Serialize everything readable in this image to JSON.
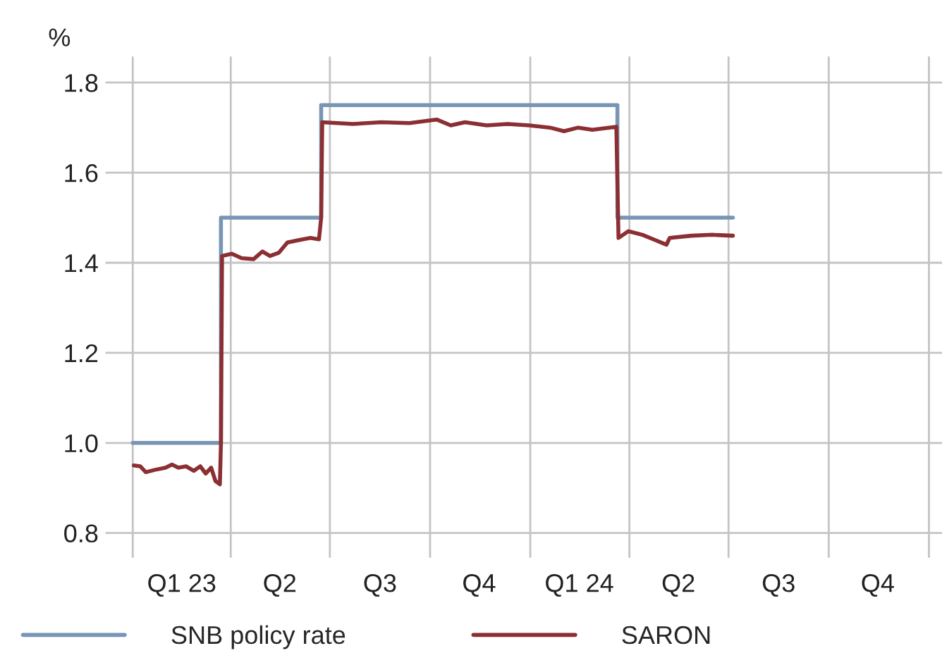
{
  "chart_data": {
    "type": "line",
    "ylabel": "%",
    "xlim": [
      "2022-12-07",
      "2025-01-13"
    ],
    "ylim": [
      0.745,
      1.858
    ],
    "yticks": [
      {
        "value": 0.8,
        "label": "0.8"
      },
      {
        "value": 1.0,
        "label": "1.0"
      },
      {
        "value": 1.2,
        "label": "1.2"
      },
      {
        "value": 1.4,
        "label": "1.4"
      },
      {
        "value": 1.6,
        "label": "1.6"
      },
      {
        "value": 1.8,
        "label": "1.8"
      }
    ],
    "xticks": [
      {
        "value": "2023-01-01",
        "label": null
      },
      {
        "value": "2023-02-15",
        "label": "Q1 23"
      },
      {
        "value": "2023-04-01",
        "label": null
      },
      {
        "value": "2023-05-16",
        "label": "Q2"
      },
      {
        "value": "2023-07-01",
        "label": null
      },
      {
        "value": "2023-08-16",
        "label": "Q3"
      },
      {
        "value": "2023-10-01",
        "label": null
      },
      {
        "value": "2023-11-15",
        "label": "Q4"
      },
      {
        "value": "2024-01-01",
        "label": null
      },
      {
        "value": "2024-02-15",
        "label": "Q1 24"
      },
      {
        "value": "2024-04-01",
        "label": null
      },
      {
        "value": "2024-05-16",
        "label": "Q2"
      },
      {
        "value": "2024-07-01",
        "label": null
      },
      {
        "value": "2024-08-16",
        "label": "Q3"
      },
      {
        "value": "2024-10-01",
        "label": null
      },
      {
        "value": "2024-11-15",
        "label": "Q4"
      },
      {
        "value": "2025-01-01",
        "label": null
      }
    ],
    "grid": true,
    "legend": "bottom",
    "line_style": "solid",
    "marker": "none",
    "series": [
      {
        "name": "SNB policy rate",
        "type": "step",
        "color": "#7795b4",
        "x": [
          "2023-01-01",
          "2023-03-23",
          "2023-06-23",
          "2024-03-21",
          "2024-07-05"
        ],
        "values": [
          1.0,
          1.5,
          1.75,
          1.5,
          1.5
        ]
      },
      {
        "name": "SARON",
        "color": "#8b2f33",
        "x": [
          "2023-01-02",
          "2023-01-08",
          "2023-01-13",
          "2023-01-21",
          "2023-01-31",
          "2023-02-06",
          "2023-02-12",
          "2023-02-19",
          "2023-02-26",
          "2023-03-04",
          "2023-03-09",
          "2023-03-14",
          "2023-03-18",
          "2023-03-22",
          "2023-03-23",
          "2023-03-24",
          "2023-04-02",
          "2023-04-11",
          "2023-04-22",
          "2023-04-30",
          "2023-05-07",
          "2023-05-15",
          "2023-05-23",
          "2023-06-02",
          "2023-06-13",
          "2023-06-21",
          "2023-06-23",
          "2023-06-24",
          "2023-07-22",
          "2023-08-17",
          "2023-09-12",
          "2023-10-07",
          "2023-10-20",
          "2023-11-02",
          "2023-11-22",
          "2023-12-11",
          "2023-12-31",
          "2024-01-19",
          "2024-02-01",
          "2024-02-14",
          "2024-02-27",
          "2024-03-20",
          "2024-03-22",
          "2024-03-31",
          "2024-04-13",
          "2024-04-25",
          "2024-05-05",
          "2024-05-08",
          "2024-05-28",
          "2024-06-16",
          "2024-07-05"
        ],
        "values": [
          0.95,
          0.948,
          0.935,
          0.94,
          0.945,
          0.952,
          0.945,
          0.948,
          0.938,
          0.948,
          0.932,
          0.945,
          0.915,
          0.908,
          1.0,
          1.415,
          1.42,
          1.41,
          1.408,
          1.425,
          1.415,
          1.422,
          1.445,
          1.45,
          1.455,
          1.452,
          1.5,
          1.712,
          1.708,
          1.712,
          1.71,
          1.718,
          1.705,
          1.712,
          1.705,
          1.708,
          1.705,
          1.7,
          1.692,
          1.7,
          1.695,
          1.702,
          1.455,
          1.47,
          1.462,
          1.45,
          1.44,
          1.455,
          1.46,
          1.462,
          1.46
        ]
      }
    ]
  }
}
